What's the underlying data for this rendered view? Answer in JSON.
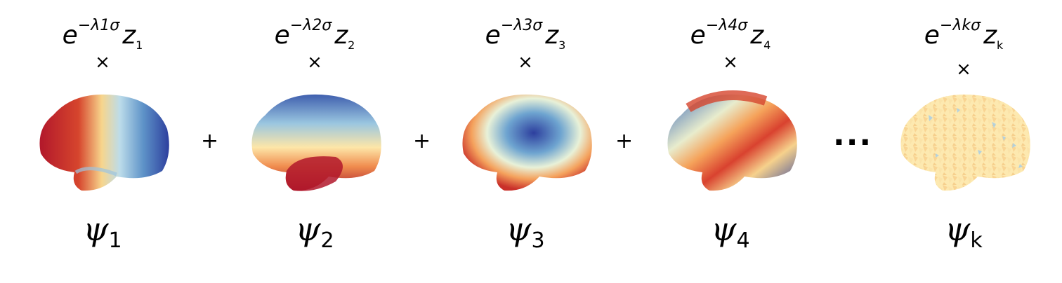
{
  "terms": [
    {
      "coef_base": "e",
      "coef_exp": "−λ1σ",
      "coef_var": "z",
      "coef_sub": "1",
      "times": "×",
      "mode_symbol": "ψ",
      "mode_sub": "1"
    },
    {
      "coef_base": "e",
      "coef_exp": "−λ2σ",
      "coef_var": "z",
      "coef_sub": "2",
      "times": "×",
      "mode_symbol": "ψ",
      "mode_sub": "2"
    },
    {
      "coef_base": "e",
      "coef_exp": "−λ3σ",
      "coef_var": "z",
      "coef_sub": "3",
      "times": "×",
      "mode_symbol": "ψ",
      "mode_sub": "3"
    },
    {
      "coef_base": "e",
      "coef_exp": "−λ4σ",
      "coef_var": "z",
      "coef_sub": "4",
      "times": "×",
      "mode_symbol": "ψ",
      "mode_sub": "4"
    },
    {
      "coef_base": "e",
      "coef_exp": "−λkσ",
      "coef_var": "z",
      "coef_sub": "k",
      "times": "×",
      "mode_symbol": "ψ",
      "mode_sub": "k"
    }
  ],
  "operators": [
    "+",
    "+",
    "+"
  ],
  "ellipsis": "···",
  "colors": {
    "red": "#b2182b",
    "orange": "#ef8a62",
    "yellow": "#fddbc7",
    "cream": "#fde9b0",
    "lightblue": "#d1e5f0",
    "blue": "#4393c3",
    "darkblue": "#2d3f9e"
  }
}
